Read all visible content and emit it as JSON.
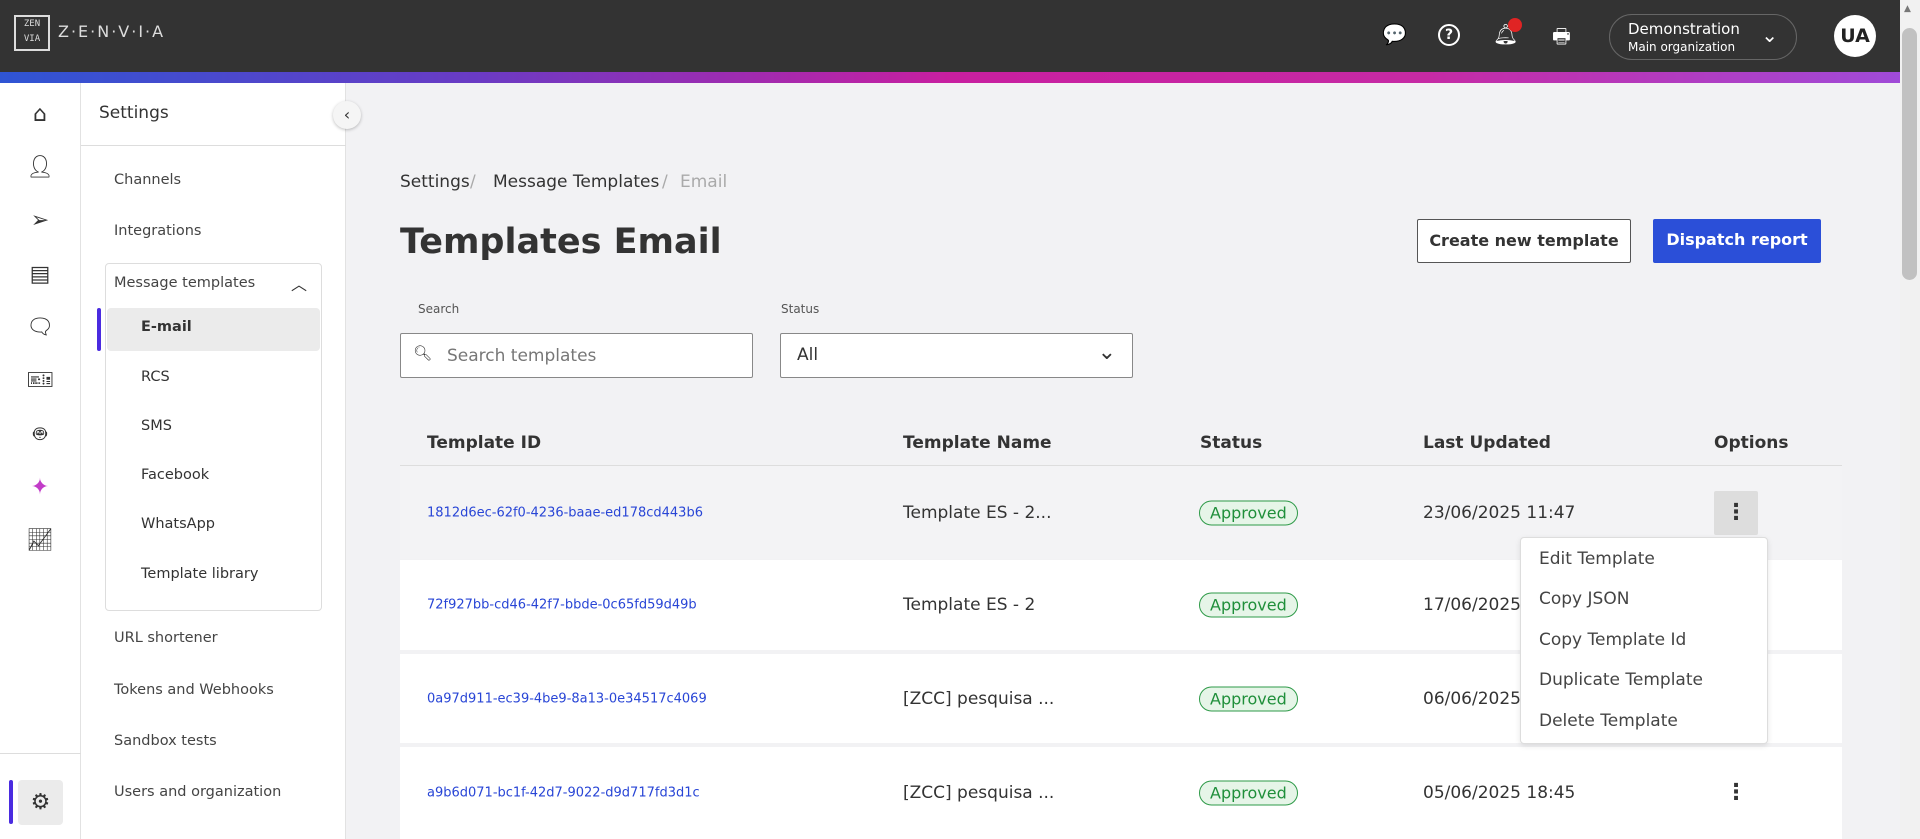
{
  "header": {
    "logo_text": "Z·E·N·V·I·A",
    "logo_mark": "ZEN VIA",
    "org_name": "Demonstration",
    "org_sub": "Main organization",
    "avatar": "UA",
    "icons": [
      "chat-help-icon",
      "help-icon",
      "bell-icon",
      "printer-icon"
    ],
    "notification_color": "#e02424"
  },
  "rail": {
    "icons": [
      "home-icon",
      "contacts-icon",
      "send-icon",
      "document-icon",
      "chat-icon",
      "ticket-icon",
      "bot-icon",
      "sparkle-icon",
      "chart-icon",
      "gear-icon"
    ],
    "accent": "#4a2be0"
  },
  "panel": {
    "title": "Settings",
    "items": [
      "Channels",
      "Integrations"
    ],
    "group": {
      "label": "Message templates",
      "items": [
        "E-mail",
        "RCS",
        "SMS",
        "Facebook",
        "WhatsApp",
        "Template library"
      ],
      "active": "E-mail"
    },
    "items_after": [
      "URL shortener",
      "Tokens and Webhooks",
      "Sandbox tests",
      "Users and organization"
    ]
  },
  "breadcrumb": [
    "Settings",
    "Message Templates",
    "Email"
  ],
  "page_title": "Templates Email",
  "buttons": {
    "create": "Create new template",
    "dispatch": "Dispatch report"
  },
  "search": {
    "label": "Search",
    "placeholder": "Search templates"
  },
  "status_filter": {
    "label": "Status",
    "value": "All"
  },
  "table": {
    "headers": [
      "Template ID",
      "Template Name",
      "Status",
      "Last Updated",
      "Options"
    ],
    "rows": [
      {
        "id": "1812d6ec-62f0-4236-baae-ed178cd443b6",
        "name": "Template ES - 2...",
        "status": "Approved",
        "updated": "23/06/2025 11:47"
      },
      {
        "id": "72f927bb-cd46-42f7-bbde-0c65fd59d49b",
        "name": "Template ES - 2",
        "status": "Approved",
        "updated": "17/06/2025"
      },
      {
        "id": "0a97d911-ec39-4be9-8a13-0e34517c4069",
        "name": "[ZCC] pesquisa ...",
        "status": "Approved",
        "updated": "06/06/2025"
      },
      {
        "id": "a9b6d071-bc1f-42d7-9022-d9d717fd3d1c",
        "name": "[ZCC] pesquisa ...",
        "status": "Approved",
        "updated": "05/06/2025 18:45"
      }
    ]
  },
  "options_menu": [
    "Edit Template",
    "Copy JSON",
    "Copy Template Id",
    "Duplicate Template",
    "Delete Template"
  ],
  "colors": {
    "primary": "#2b4fd8",
    "link": "#2845d6",
    "approved": "#2e9a48"
  }
}
